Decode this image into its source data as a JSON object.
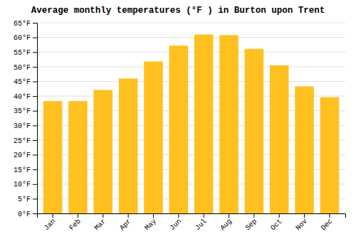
{
  "chart_data": {
    "type": "bar",
    "title": "Average monthly temperatures (°F ) in Burton upon Trent",
    "categories": [
      "Jan",
      "Feb",
      "Mar",
      "Apr",
      "May",
      "Jun",
      "Jul",
      "Aug",
      "Sep",
      "Oct",
      "Nov",
      "Dec"
    ],
    "values": [
      38.3,
      38.3,
      42.1,
      46.0,
      51.8,
      57.2,
      61.0,
      60.8,
      56.1,
      50.5,
      43.3,
      39.6
    ],
    "color": "#FFC020",
    "ylim": [
      0,
      65
    ],
    "yticks": [
      {
        "value": 0,
        "label": "0°F"
      },
      {
        "value": 5,
        "label": "5°F"
      },
      {
        "value": 10,
        "label": "10°F"
      },
      {
        "value": 15,
        "label": "15°F"
      },
      {
        "value": 20,
        "label": "20°F"
      },
      {
        "value": 25,
        "label": "25°F"
      },
      {
        "value": 30,
        "label": "30°F"
      },
      {
        "value": 35,
        "label": "35°F"
      },
      {
        "value": 40,
        "label": "40°F"
      },
      {
        "value": 45,
        "label": "45°F"
      },
      {
        "value": 50,
        "label": "50°F"
      },
      {
        "value": 55,
        "label": "55°F"
      },
      {
        "value": 60,
        "label": "60°F"
      },
      {
        "value": 65,
        "label": "65°F"
      }
    ],
    "grid": true
  }
}
